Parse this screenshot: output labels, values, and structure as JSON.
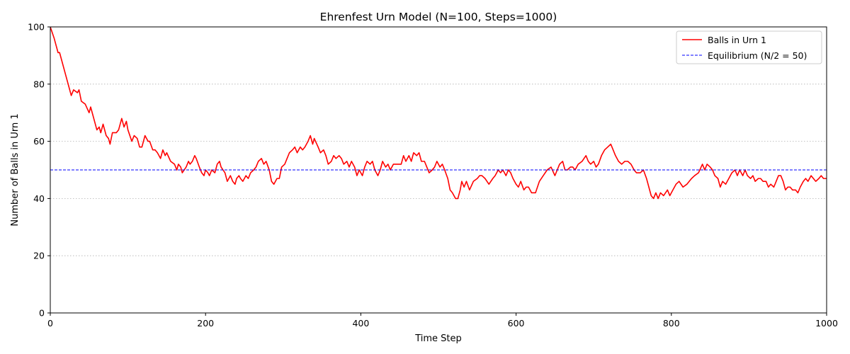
{
  "chart_data": {
    "type": "line",
    "title": "Ehrenfest Urn Model (N=100, Steps=1000)",
    "xlabel": "Time Step",
    "ylabel": "Number of Balls in Urn 1",
    "xlim": [
      0,
      1000
    ],
    "ylim": [
      0,
      100
    ],
    "xticks": [
      0,
      200,
      400,
      600,
      800,
      1000
    ],
    "yticks": [
      0,
      20,
      40,
      60,
      80,
      100
    ],
    "grid": "y-dotted",
    "legend_position": "top-right",
    "series": [
      {
        "name": "Balls in Urn 1",
        "color": "#ff0000",
        "style": "solid",
        "points": [
          [
            0,
            100
          ],
          [
            5,
            96
          ],
          [
            10,
            91
          ],
          [
            12,
            91
          ],
          [
            15,
            88
          ],
          [
            20,
            83
          ],
          [
            25,
            78
          ],
          [
            27,
            76
          ],
          [
            30,
            78
          ],
          [
            35,
            77
          ],
          [
            37,
            78
          ],
          [
            40,
            74
          ],
          [
            45,
            73
          ],
          [
            50,
            70
          ],
          [
            52,
            72
          ],
          [
            55,
            69
          ],
          [
            60,
            64
          ],
          [
            63,
            65
          ],
          [
            65,
            63
          ],
          [
            68,
            66
          ],
          [
            72,
            62
          ],
          [
            75,
            61
          ],
          [
            77,
            59
          ],
          [
            80,
            63
          ],
          [
            85,
            63
          ],
          [
            88,
            64
          ],
          [
            92,
            68
          ],
          [
            95,
            65
          ],
          [
            98,
            67
          ],
          [
            100,
            64
          ],
          [
            105,
            60
          ],
          [
            108,
            62
          ],
          [
            112,
            61
          ],
          [
            115,
            58
          ],
          [
            118,
            58
          ],
          [
            122,
            62
          ],
          [
            126,
            60
          ],
          [
            128,
            60
          ],
          [
            132,
            57
          ],
          [
            135,
            57
          ],
          [
            138,
            56
          ],
          [
            140,
            55
          ],
          [
            142,
            54
          ],
          [
            145,
            57
          ],
          [
            148,
            55
          ],
          [
            150,
            56
          ],
          [
            155,
            53
          ],
          [
            160,
            52
          ],
          [
            163,
            50
          ],
          [
            165,
            52
          ],
          [
            168,
            51
          ],
          [
            170,
            49
          ],
          [
            175,
            51
          ],
          [
            178,
            53
          ],
          [
            180,
            52
          ],
          [
            183,
            53
          ],
          [
            186,
            55
          ],
          [
            188,
            54
          ],
          [
            192,
            51
          ],
          [
            195,
            49
          ],
          [
            198,
            48
          ],
          [
            200,
            50
          ],
          [
            203,
            49
          ],
          [
            205,
            48
          ],
          [
            208,
            50
          ],
          [
            212,
            49
          ],
          [
            215,
            52
          ],
          [
            218,
            53
          ],
          [
            220,
            51
          ],
          [
            225,
            49
          ],
          [
            228,
            46
          ],
          [
            232,
            48
          ],
          [
            235,
            46
          ],
          [
            238,
            45
          ],
          [
            240,
            47
          ],
          [
            243,
            48
          ],
          [
            245,
            47
          ],
          [
            248,
            46
          ],
          [
            252,
            48
          ],
          [
            255,
            47
          ],
          [
            258,
            49
          ],
          [
            262,
            50
          ],
          [
            265,
            51
          ],
          [
            268,
            53
          ],
          [
            272,
            54
          ],
          [
            275,
            52
          ],
          [
            278,
            53
          ],
          [
            282,
            50
          ],
          [
            285,
            46
          ],
          [
            288,
            45
          ],
          [
            292,
            47
          ],
          [
            295,
            47
          ],
          [
            298,
            51
          ],
          [
            302,
            52
          ],
          [
            305,
            54
          ],
          [
            308,
            56
          ],
          [
            312,
            57
          ],
          [
            315,
            58
          ],
          [
            318,
            56
          ],
          [
            322,
            58
          ],
          [
            325,
            57
          ],
          [
            328,
            58
          ],
          [
            332,
            60
          ],
          [
            335,
            62
          ],
          [
            338,
            59
          ],
          [
            340,
            61
          ],
          [
            345,
            58
          ],
          [
            348,
            56
          ],
          [
            352,
            57
          ],
          [
            355,
            55
          ],
          [
            358,
            52
          ],
          [
            362,
            53
          ],
          [
            365,
            55
          ],
          [
            368,
            54
          ],
          [
            372,
            55
          ],
          [
            375,
            54
          ],
          [
            378,
            52
          ],
          [
            382,
            53
          ],
          [
            385,
            51
          ],
          [
            388,
            53
          ],
          [
            392,
            51
          ],
          [
            395,
            48
          ],
          [
            398,
            50
          ],
          [
            402,
            48
          ],
          [
            405,
            51
          ],
          [
            408,
            53
          ],
          [
            412,
            52
          ],
          [
            415,
            53
          ],
          [
            418,
            50
          ],
          [
            422,
            48
          ],
          [
            425,
            50
          ],
          [
            428,
            53
          ],
          [
            432,
            51
          ],
          [
            435,
            52
          ],
          [
            438,
            50
          ],
          [
            442,
            52
          ],
          [
            445,
            52
          ],
          [
            448,
            52
          ],
          [
            452,
            52
          ],
          [
            455,
            55
          ],
          [
            458,
            53
          ],
          [
            462,
            55
          ],
          [
            465,
            53
          ],
          [
            468,
            56
          ],
          [
            472,
            55
          ],
          [
            475,
            56
          ],
          [
            478,
            53
          ],
          [
            482,
            53
          ],
          [
            485,
            51
          ],
          [
            488,
            49
          ],
          [
            492,
            50
          ],
          [
            495,
            51
          ],
          [
            498,
            53
          ],
          [
            502,
            51
          ],
          [
            505,
            52
          ],
          [
            508,
            50
          ],
          [
            512,
            47
          ],
          [
            515,
            43
          ],
          [
            518,
            42
          ],
          [
            522,
            40
          ],
          [
            525,
            40
          ],
          [
            528,
            43
          ],
          [
            530,
            46
          ],
          [
            533,
            44
          ],
          [
            536,
            46
          ],
          [
            540,
            43
          ],
          [
            545,
            46
          ],
          [
            550,
            47
          ],
          [
            553,
            48
          ],
          [
            556,
            48
          ],
          [
            560,
            47
          ],
          [
            565,
            45
          ],
          [
            570,
            47
          ],
          [
            573,
            48
          ],
          [
            577,
            50
          ],
          [
            580,
            49
          ],
          [
            583,
            50
          ],
          [
            587,
            48
          ],
          [
            590,
            50
          ],
          [
            593,
            49
          ],
          [
            596,
            47
          ],
          [
            600,
            45
          ],
          [
            603,
            44
          ],
          [
            606,
            46
          ],
          [
            610,
            43
          ],
          [
            613,
            44
          ],
          [
            616,
            44
          ],
          [
            620,
            42
          ],
          [
            625,
            42
          ],
          [
            630,
            46
          ],
          [
            635,
            48
          ],
          [
            640,
            50
          ],
          [
            645,
            51
          ],
          [
            650,
            48
          ],
          [
            653,
            50
          ],
          [
            656,
            52
          ],
          [
            660,
            53
          ],
          [
            663,
            50
          ],
          [
            666,
            50
          ],
          [
            670,
            51
          ],
          [
            673,
            51
          ],
          [
            676,
            50
          ],
          [
            680,
            52
          ],
          [
            685,
            53
          ],
          [
            690,
            55
          ],
          [
            693,
            53
          ],
          [
            696,
            52
          ],
          [
            700,
            53
          ],
          [
            703,
            51
          ],
          [
            706,
            52
          ],
          [
            710,
            55
          ],
          [
            714,
            57
          ],
          [
            718,
            58
          ],
          [
            722,
            59
          ],
          [
            725,
            57
          ],
          [
            728,
            55
          ],
          [
            732,
            53
          ],
          [
            736,
            52
          ],
          [
            740,
            53
          ],
          [
            744,
            53
          ],
          [
            748,
            52
          ],
          [
            752,
            50
          ],
          [
            755,
            49
          ],
          [
            760,
            49
          ],
          [
            764,
            50
          ],
          [
            768,
            47
          ],
          [
            771,
            44
          ],
          [
            774,
            41
          ],
          [
            777,
            40
          ],
          [
            780,
            42
          ],
          [
            783,
            40
          ],
          [
            786,
            42
          ],
          [
            790,
            41
          ],
          [
            795,
            43
          ],
          [
            798,
            41
          ],
          [
            802,
            43
          ],
          [
            806,
            45
          ],
          [
            810,
            46
          ],
          [
            815,
            44
          ],
          [
            820,
            45
          ],
          [
            823,
            46
          ],
          [
            826,
            47
          ],
          [
            830,
            48
          ],
          [
            835,
            49
          ],
          [
            840,
            52
          ],
          [
            843,
            50
          ],
          [
            846,
            52
          ],
          [
            850,
            51
          ],
          [
            853,
            50
          ],
          [
            856,
            48
          ],
          [
            860,
            47
          ],
          [
            863,
            44
          ],
          [
            866,
            46
          ],
          [
            870,
            45
          ],
          [
            874,
            47
          ],
          [
            878,
            49
          ],
          [
            882,
            50
          ],
          [
            885,
            48
          ],
          [
            888,
            50
          ],
          [
            892,
            48
          ],
          [
            895,
            50
          ],
          [
            898,
            48
          ],
          [
            902,
            47
          ],
          [
            905,
            48
          ],
          [
            908,
            46
          ],
          [
            912,
            47
          ],
          [
            915,
            47
          ],
          [
            918,
            46
          ],
          [
            922,
            46
          ],
          [
            925,
            44
          ],
          [
            928,
            45
          ],
          [
            932,
            44
          ],
          [
            935,
            46
          ],
          [
            938,
            48
          ],
          [
            941,
            48
          ],
          [
            944,
            46
          ],
          [
            947,
            43
          ],
          [
            950,
            44
          ],
          [
            953,
            44
          ],
          [
            956,
            43
          ],
          [
            960,
            43
          ],
          [
            963,
            42
          ],
          [
            966,
            44
          ],
          [
            970,
            46
          ],
          [
            973,
            47
          ],
          [
            976,
            46
          ],
          [
            980,
            48
          ],
          [
            983,
            47
          ],
          [
            986,
            46
          ],
          [
            990,
            47
          ],
          [
            993,
            48
          ],
          [
            996,
            47
          ],
          [
            1000,
            47
          ]
        ]
      },
      {
        "name": "Equilibrium (N/2 = 50)",
        "color": "#0000ff",
        "style": "dashed",
        "points": [
          [
            0,
            50
          ],
          [
            1000,
            50
          ]
        ]
      }
    ]
  }
}
